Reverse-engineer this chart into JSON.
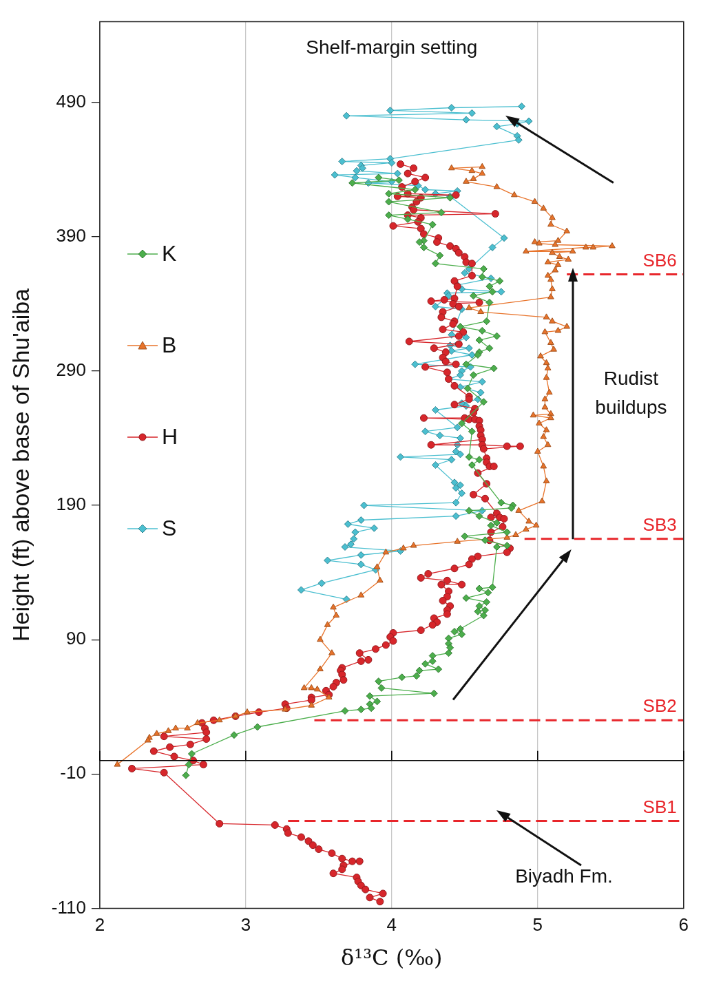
{
  "chart_data": {
    "type": "line",
    "xlabel": "δ¹³C (‰)",
    "ylabel": "Height (ft) above base of Shu'aiba",
    "xlim": [
      2,
      6
    ],
    "xticks": [
      2,
      3,
      4,
      5,
      6
    ],
    "ylim": [
      -110,
      550
    ],
    "yticks": [
      -110,
      -10,
      90,
      190,
      290,
      390,
      490
    ],
    "grid": "x",
    "legend": "left",
    "ref_lines": [
      {
        "axis": "y",
        "value": 0,
        "color": "#000000"
      }
    ],
    "annotations": [
      "Shelf-margin setting",
      "Rudist buildups",
      "Biyadh Fm."
    ],
    "series": [
      {
        "name": "K",
        "color": "#4cae4c",
        "marker": "diamond",
        "x": [
          3.91,
          4.05,
          3.73,
          4.16,
          3.98,
          4.4,
          3.98,
          4.34,
          3.98,
          4.11,
          4.28,
          4.22,
          4.19,
          4.22,
          4.33,
          4.3,
          4.63,
          4.62,
          4.74,
          4.67,
          4.69,
          4.56,
          4.67,
          4.65,
          4.47,
          4.62,
          4.72,
          4.6,
          4.67,
          4.6,
          4.59,
          4.51,
          4.7,
          4.56,
          4.52,
          4.63,
          4.48,
          4.55,
          4.53,
          4.6,
          4.55,
          4.75,
          4.83,
          4.82,
          4.53,
          4.6,
          4.72,
          4.68,
          4.79,
          4.5,
          4.64,
          4.79,
          4.72,
          4.69,
          4.6,
          4.66,
          4.51,
          4.65,
          4.6,
          4.64,
          4.59,
          4.63,
          4.47,
          4.43,
          4.48,
          4.39,
          4.39,
          4.4,
          4.39,
          4.28,
          4.28,
          4.23,
          4.32,
          4.19,
          4.17,
          4.07,
          3.91,
          3.93,
          4.29,
          3.85,
          3.9,
          3.85,
          3.86,
          3.79,
          3.68,
          3.08,
          2.92,
          2.63,
          2.61,
          2.59
        ],
        "values": [
          434,
          432,
          430,
          425,
          422,
          419,
          416,
          408,
          406,
          403,
          399,
          387,
          386,
          382,
          376,
          370,
          366,
          360,
          357,
          353,
          349,
          346,
          341,
          327,
          323,
          320,
          316,
          313,
          307,
          304,
          302,
          295,
          292,
          287,
          277,
          267,
          251,
          245,
          226,
          224,
          220,
          192,
          190,
          188,
          186,
          182,
          177,
          175,
          170,
          167,
          164,
          160,
          159,
          129,
          128,
          125,
          121,
          118,
          115,
          112,
          111,
          108,
          98,
          96,
          94,
          91,
          87,
          84,
          80,
          78,
          74,
          72,
          68,
          67,
          63,
          62,
          59,
          54,
          50,
          48,
          44,
          42,
          39,
          38,
          37,
          25,
          19,
          5,
          -3,
          -11
        ]
      },
      {
        "name": "B",
        "color": "#e8732a",
        "marker": "triangle",
        "x": [
          4.62,
          4.41,
          4.55,
          4.62,
          4.56,
          4.51,
          4.72,
          4.84,
          4.98,
          5.04,
          5.1,
          5.09,
          5.2,
          5.14,
          4.98,
          5.01,
          5.12,
          5.51,
          5.38,
          5.33,
          4.92,
          5.24,
          5.1,
          5.15,
          5.21,
          5.07,
          5.14,
          5.12,
          5.07,
          5.09,
          5.1,
          5.09,
          4.53,
          4.61,
          5.06,
          5.1,
          5.2,
          5.14,
          5.05,
          5.09,
          5.11,
          5.02,
          5.06,
          5.07,
          5.06,
          5.08,
          5.05,
          5.05,
          5.09,
          4.97,
          5.09,
          5.01,
          5.06,
          5.04,
          5.07,
          5.0,
          5.04,
          5.06,
          5.03,
          4.87,
          4.94,
          4.99,
          4.92,
          4.85,
          4.79,
          4.45,
          4.15,
          4.08,
          3.96,
          3.9,
          3.92,
          3.79,
          3.6,
          3.62,
          3.56,
          3.51,
          3.59,
          3.51,
          3.4,
          3.45,
          3.49,
          3.57,
          3.45,
          3.27,
          3.01,
          2.93,
          2.82,
          2.67,
          2.6,
          2.52,
          2.47,
          2.39,
          2.34,
          2.33,
          2.12
        ],
        "values": [
          442,
          441,
          439,
          437,
          433,
          431,
          427,
          421,
          416,
          411,
          404,
          399,
          394,
          387,
          386,
          385,
          384,
          383,
          382,
          382,
          379,
          379,
          378,
          375,
          373,
          371,
          369,
          365,
          361,
          358,
          351,
          345,
          337,
          334,
          330,
          327,
          323,
          320,
          319,
          311,
          306,
          301,
          296,
          292,
          285,
          274,
          269,
          263,
          258,
          257,
          255,
          251,
          246,
          241,
          235,
          230,
          219,
          208,
          193,
          186,
          178,
          175,
          172,
          168,
          166,
          163,
          160,
          158,
          155,
          144,
          134,
          123,
          114,
          108,
          101,
          90,
          80,
          68,
          54,
          54,
          53,
          47,
          41,
          38,
          36,
          33,
          30,
          28,
          24,
          24,
          22,
          20,
          17,
          15,
          -3
        ]
      },
      {
        "name": "H",
        "color": "#d7262b",
        "marker": "circle",
        "x": [
          4.06,
          4.15,
          4.11,
          4.23,
          4.16,
          4.07,
          4.11,
          4.44,
          4.04,
          4.2,
          4.17,
          4.14,
          4.15,
          4.71,
          4.11,
          4.2,
          4.18,
          4.01,
          4.2,
          4.22,
          4.32,
          4.31,
          4.4,
          4.44,
          4.46,
          4.5,
          4.51,
          4.55,
          4.55,
          4.43,
          4.45,
          4.43,
          4.36,
          4.27,
          4.6,
          4.42,
          4.46,
          4.35,
          4.34,
          4.43,
          4.42,
          4.35,
          4.49,
          4.46,
          4.12,
          4.46,
          4.29,
          4.37,
          4.35,
          4.37,
          4.44,
          4.23,
          4.38,
          4.39,
          4.43,
          4.53,
          4.53,
          4.43,
          4.57,
          4.56,
          4.5,
          4.22,
          4.53,
          4.57,
          4.6,
          4.6,
          4.61,
          4.61,
          4.62,
          4.27,
          4.62,
          4.79,
          4.88,
          4.63,
          4.65,
          4.65,
          4.67,
          4.7,
          4.59,
          4.65,
          4.56,
          4.64,
          4.72,
          4.68,
          4.74,
          4.77,
          4.76,
          4.68,
          4.67,
          4.81,
          4.79,
          4.59,
          4.55,
          4.53,
          4.43,
          4.25,
          4.2,
          4.38,
          4.48,
          4.34,
          4.39,
          4.38,
          4.35,
          4.4,
          4.38,
          4.38,
          4.29,
          4.31,
          4.28,
          4.2,
          4.01,
          3.99,
          4.01,
          3.96,
          3.89,
          3.78,
          3.84,
          3.79,
          3.66,
          3.65,
          3.66,
          3.67,
          3.62,
          3.6,
          3.55,
          3.57,
          3.45,
          3.45,
          3.27,
          3.28,
          3.09,
          2.93,
          2.78,
          2.7,
          2.72,
          2.73,
          2.44,
          2.73,
          2.62,
          2.48,
          2.37,
          2.51,
          2.64,
          2.71,
          2.22,
          2.44,
          2.82,
          3.2,
          3.28,
          3.29,
          3.38,
          3.43,
          3.46,
          3.5,
          3.59,
          3.66,
          3.73,
          3.78,
          3.67,
          3.66,
          3.6,
          3.76,
          3.77,
          3.79,
          3.82,
          3.94,
          3.85,
          3.92
        ],
        "values": [
          444,
          441,
          437,
          434,
          431,
          427,
          422,
          421,
          420,
          419,
          416,
          412,
          410,
          407,
          406,
          404,
          401,
          398,
          396,
          392,
          389,
          386,
          383,
          381,
          378,
          375,
          371,
          370,
          361,
          357,
          353,
          344,
          343,
          342,
          341,
          340,
          338,
          334,
          330,
          327,
          325,
          321,
          319,
          316,
          312,
          310,
          307,
          304,
          300,
          297,
          295,
          293,
          289,
          284,
          279,
          271,
          269,
          265,
          262,
          259,
          255,
          255,
          254,
          254,
          253,
          249,
          246,
          242,
          239,
          235,
          235,
          234,
          234,
          232,
          225,
          222,
          219,
          219,
          214,
          206,
          198,
          195,
          184,
          181,
          181,
          180,
          174,
          170,
          164,
          158,
          155,
          152,
          150,
          146,
          143,
          139,
          136,
          134,
          131,
          131,
          126,
          122,
          119,
          115,
          112,
          109,
          106,
          103,
          101,
          97,
          95,
          92,
          89,
          86,
          83,
          80,
          75,
          74,
          69,
          67,
          64,
          60,
          58,
          55,
          52,
          49,
          47,
          45,
          42,
          39,
          36,
          33,
          30,
          28,
          24,
          21,
          18,
          16,
          12,
          10,
          7,
          3,
          0,
          -3,
          -6,
          -9,
          -47,
          -48,
          -51,
          -54,
          -57,
          -60,
          -63,
          -66,
          -69,
          -73,
          -75,
          -75,
          -78,
          -81,
          -84,
          -87,
          -90,
          -93,
          -96,
          -99,
          -102,
          -105
        ]
      },
      {
        "name": "S",
        "color": "#4bbfd0",
        "marker": "diamond",
        "x": [
          4.89,
          4.41,
          3.99,
          4.55,
          3.69,
          4.51,
          4.94,
          4.86,
          4.72,
          4.86,
          4.87,
          3.99,
          3.66,
          4.0,
          3.79,
          3.8,
          3.76,
          4.04,
          3.61,
          3.75,
          4.0,
          3.84,
          4.18,
          4.23,
          4.45,
          4.3,
          4.4,
          4.77,
          4.69,
          4.53,
          4.5,
          4.68,
          4.45,
          4.48,
          4.75,
          4.38,
          4.39,
          4.3,
          4.48,
          4.41,
          4.51,
          4.4,
          4.53,
          4.41,
          4.55,
          4.16,
          4.54,
          4.48,
          4.47,
          4.39,
          4.62,
          4.47,
          4.61,
          4.59,
          4.48,
          4.51,
          4.3,
          4.45,
          4.23,
          4.33,
          4.47,
          4.45,
          4.44,
          4.47,
          4.06,
          4.41,
          4.3,
          4.43,
          4.47,
          4.44,
          4.48,
          4.44,
          3.81,
          4.62,
          4.44,
          3.79,
          3.7,
          3.88,
          3.75,
          3.74,
          3.72,
          3.68,
          4.06,
          3.79,
          3.56,
          3.79,
          3.89,
          3.52,
          3.38,
          3.69
        ],
        "values": [
          487,
          486,
          484,
          482,
          480,
          477,
          476,
          474,
          472,
          465,
          462,
          448,
          446,
          445,
          443,
          441,
          439,
          437,
          436,
          434,
          431,
          430,
          428,
          425,
          424,
          422,
          420,
          389,
          382,
          366,
          363,
          359,
          354,
          351,
          349,
          348,
          346,
          338,
          336,
          317,
          315,
          309,
          307,
          305,
          302,
          295,
          293,
          290,
          287,
          284,
          282,
          278,
          274,
          269,
          266,
          264,
          261,
          248,
          245,
          242,
          240,
          235,
          230,
          228,
          226,
          224,
          220,
          207,
          205,
          203,
          199,
          192,
          190,
          186,
          182,
          179,
          176,
          173,
          170,
          165,
          161,
          159,
          156,
          153,
          149,
          146,
          142,
          132,
          127,
          120
        ]
      },
      {
        "name": "SB6",
        "color": "#e8262b",
        "line_style": "dashed",
        "marker": "none",
        "x": [
          5.2,
          6
        ],
        "values": [
          362,
          362
        ]
      },
      {
        "name": "SB3",
        "color": "#e8262b",
        "line_style": "dashed",
        "marker": "none",
        "x": [
          4.91,
          6
        ],
        "values": [
          165,
          165
        ]
      },
      {
        "name": "SB2",
        "color": "#e8262b",
        "line_style": "dashed",
        "marker": "none",
        "x": [
          3.47,
          6
        ],
        "values": [
          30,
          30
        ]
      },
      {
        "name": "SB1",
        "color": "#e8262b",
        "line_style": "dashed",
        "marker": "none",
        "x": [
          3.29,
          6
        ],
        "values": [
          -45,
          -45
        ]
      }
    ]
  }
}
